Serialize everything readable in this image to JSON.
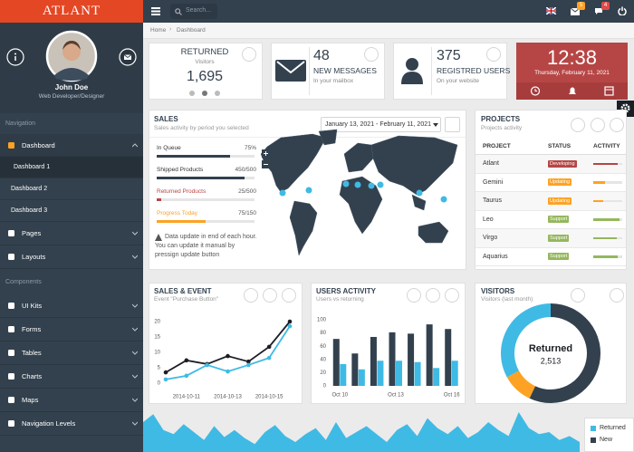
{
  "brand": "ATLANT",
  "search_placeholder": "Search...",
  "badges": {
    "mail": 5,
    "chat": 4
  },
  "profile": {
    "name": "John Doe",
    "role": "Web Developer/Designer"
  },
  "sidebar": {
    "sections": [
      {
        "title": "Navigation",
        "items": [
          {
            "label": "Dashboard",
            "children": [
              "Dashboard 1",
              "Dashboard 2",
              "Dashboard 3"
            ]
          },
          {
            "label": "Pages"
          },
          {
            "label": "Layouts"
          }
        ]
      },
      {
        "title": "Components",
        "items": [
          {
            "label": "UI Kits"
          },
          {
            "label": "Forms"
          },
          {
            "label": "Tables"
          },
          {
            "label": "Charts"
          },
          {
            "label": "Maps"
          },
          {
            "label": "Navigation Levels"
          }
        ]
      }
    ]
  },
  "breadcrumb": [
    "Home",
    "Dashboard"
  ],
  "widgets": {
    "returned": {
      "title": "RETURNED",
      "subtitle": "Visitors",
      "value": {
        "value": 1695,
        "label": "1,695"
      }
    },
    "messages": {
      "value": 48,
      "title": "NEW MESSAGES",
      "subtitle": "In your mailbox"
    },
    "users": {
      "value": 375,
      "title": "REGISTRED USERS",
      "subtitle": "On your website"
    },
    "clock": {
      "time": "12:38",
      "date": "Thursday, February 11, 2021"
    }
  },
  "sales": {
    "title": "SALES",
    "subtitle": "Sales activity by period you selected",
    "date_range": "January 13, 2021 - February 11, 2021",
    "progress": [
      {
        "label": "In Queue",
        "value": 75,
        "value_label": "75%",
        "color": "#33414e"
      },
      {
        "label": "Shipped Products",
        "value": 450,
        "total": 500,
        "value_label": "450/500",
        "color": "#33414e"
      },
      {
        "label": "Returned Products",
        "value": 25,
        "total": 500,
        "value_label": "25/500",
        "color": "#b64645"
      },
      {
        "label": "Progress Today",
        "value": 75,
        "total": 150,
        "value_label": "75/150",
        "color": "#fea223"
      }
    ],
    "note": "Data update in end of each hour. You can update it manual by pressign update button"
  },
  "projects": {
    "title": "PROJECTS",
    "subtitle": "Projects activity",
    "columns": [
      "PROJECT",
      "STATUS",
      "ACTIVITY"
    ],
    "rows": [
      {
        "name": "Atlant",
        "status": "Developing",
        "color": "#b64645",
        "activity": 85
      },
      {
        "name": "Gemini",
        "status": "Updating",
        "color": "#fea223",
        "activity": 40
      },
      {
        "name": "Taurus",
        "status": "Updating",
        "color": "#fea223",
        "activity": 35
      },
      {
        "name": "Leo",
        "status": "Support",
        "color": "#95b75d",
        "activity": 90
      },
      {
        "name": "Virgo",
        "status": "Support",
        "color": "#95b75d",
        "activity": 80
      },
      {
        "name": "Aquarius",
        "status": "Support",
        "color": "#95b75d",
        "activity": 85
      }
    ]
  },
  "sales_event": {
    "title": "SALES & EVENT",
    "subtitle": "Event \"Purchase Button\"",
    "chart_data": {
      "type": "line",
      "categories": [
        null,
        "2014-10-11",
        null,
        "2014-10-13",
        null,
        "2014-10-15",
        null
      ],
      "series": [
        {
          "color": "#1b1e24",
          "values": [
            3.5,
            7.4,
            6.2,
            8.8,
            7,
            11.8,
            20
          ]
        },
        {
          "color": "#3fbae4",
          "values": [
            1.2,
            2.4,
            5.9,
            3.8,
            5.9,
            8.2,
            18.5
          ]
        }
      ],
      "ylim": [
        0,
        20
      ],
      "yticks": [
        0,
        5,
        10,
        15,
        20
      ]
    }
  },
  "users_activity": {
    "title": "USERS ACTIVITY",
    "subtitle": "Users vs returning",
    "chart_data": {
      "type": "bar",
      "categories": [
        "Oct 10",
        null,
        null,
        "Oct 13",
        null,
        null,
        "Oct 16"
      ],
      "series": [
        {
          "color": "#33414e",
          "values": [
            71,
            49,
            74,
            81,
            79,
            93,
            86
          ]
        },
        {
          "color": "#3fbae4",
          "values": [
            33,
            25,
            38,
            38,
            36,
            27,
            38
          ]
        }
      ],
      "ylim": [
        0,
        100
      ],
      "yticks": [
        0,
        20,
        40,
        60,
        80,
        100
      ]
    }
  },
  "visitors": {
    "title": "VISITORS",
    "subtitle": "Visitors (last month)",
    "chart_data": {
      "type": "pie",
      "values": [
        57,
        10,
        33
      ],
      "colors": [
        "#33414e",
        "#fea223",
        "#3fbae4"
      ],
      "center_title": "Returned",
      "center_value": {
        "value": 2513,
        "label": "2,513"
      }
    }
  },
  "traffic": {
    "chart_data": {
      "type": "area",
      "series": [
        {
          "name": "Returned",
          "color": "#3fbae4",
          "values": [
            30,
            38,
            22,
            18,
            28,
            20,
            12,
            26,
            15,
            22,
            14,
            8,
            20,
            27,
            16,
            10,
            18,
            24,
            12,
            30,
            14,
            20,
            26,
            18,
            10,
            22,
            28,
            16,
            34,
            24,
            18,
            26,
            14,
            20,
            30,
            22,
            16,
            40,
            24,
            18,
            20,
            12,
            16,
            10
          ]
        },
        {
          "name": "New",
          "color": "#33414e",
          "values": [
            20,
            26,
            15,
            12,
            18,
            14,
            8,
            17,
            10,
            15,
            9,
            5,
            13,
            18,
            11,
            6,
            12,
            16,
            8,
            20,
            9,
            13,
            17,
            12,
            6,
            15,
            19,
            10,
            22,
            16,
            12,
            17,
            9,
            13,
            20,
            14,
            10,
            26,
            16,
            12,
            13,
            8,
            10,
            6
          ]
        }
      ]
    }
  }
}
